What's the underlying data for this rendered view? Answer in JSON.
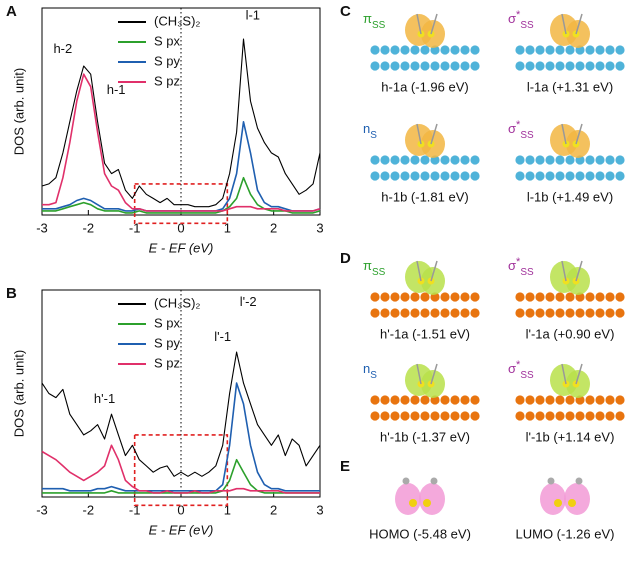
{
  "chart_data": [
    {
      "type": "line",
      "panel": "A",
      "xlabel": "E - EF (eV)",
      "ylabel": "DOS (arb. unit)",
      "xlim": [
        -3,
        3
      ],
      "xticks": [
        -3,
        -2,
        -1,
        0,
        1,
        2,
        3
      ],
      "ylim": [
        0,
        100
      ],
      "vline": 0,
      "highlight": {
        "xrange": [
          -1,
          1
        ],
        "yrange": [
          -4,
          15
        ]
      },
      "legend": "top-center",
      "x": [
        -3,
        -2.85,
        -2.7,
        -2.55,
        -2.4,
        -2.25,
        -2.1,
        -1.95,
        -1.8,
        -1.65,
        -1.5,
        -1.35,
        -1.2,
        -1.05,
        -0.9,
        -0.75,
        -0.6,
        -0.45,
        -0.3,
        -0.15,
        0,
        0.15,
        0.3,
        0.45,
        0.6,
        0.75,
        0.9,
        1.05,
        1.2,
        1.35,
        1.5,
        1.65,
        1.8,
        1.95,
        2.1,
        2.25,
        2.4,
        2.55,
        2.7,
        2.85,
        3
      ],
      "series": [
        {
          "name": "(CH₃S)₂",
          "color": "#000000",
          "values": [
            14,
            15,
            18,
            30,
            45,
            60,
            72,
            68,
            45,
            25,
            20,
            22,
            12,
            8,
            14,
            10,
            8,
            6,
            8,
            5,
            5,
            5,
            4,
            4,
            4,
            5,
            8,
            20,
            40,
            85,
            55,
            42,
            35,
            30,
            28,
            20,
            15,
            10,
            12,
            15,
            30
          ]
        },
        {
          "name": "S px",
          "color": "#2ca02c",
          "values": [
            2,
            2,
            2,
            3,
            4,
            5,
            6,
            5,
            3,
            2,
            2,
            2,
            1,
            1,
            2,
            1,
            1,
            1,
            1,
            1,
            1,
            1,
            1,
            1,
            1,
            1,
            2,
            4,
            8,
            18,
            10,
            5,
            3,
            2,
            2,
            2,
            1,
            1,
            1,
            1,
            2
          ]
        },
        {
          "name": "S py",
          "color": "#1f5fb0",
          "values": [
            3,
            3,
            3,
            4,
            5,
            7,
            8,
            7,
            5,
            3,
            3,
            3,
            2,
            2,
            3,
            2,
            2,
            2,
            2,
            2,
            2,
            2,
            2,
            2,
            2,
            2,
            3,
            8,
            20,
            45,
            30,
            12,
            6,
            4,
            4,
            3,
            2,
            2,
            2,
            2,
            3
          ]
        },
        {
          "name": "S pz",
          "color": "#e0306a",
          "values": [
            5,
            5,
            6,
            18,
            35,
            55,
            68,
            62,
            40,
            20,
            14,
            12,
            6,
            3,
            3,
            2,
            2,
            2,
            2,
            2,
            2,
            2,
            2,
            2,
            2,
            2,
            2,
            3,
            4,
            4,
            4,
            3,
            3,
            3,
            3,
            2,
            2,
            2,
            2,
            2,
            3
          ]
        }
      ],
      "annotations": [
        {
          "text": "h-2",
          "x": -2.55,
          "y": 80
        },
        {
          "text": "h-1",
          "x": -1.4,
          "y": 60
        },
        {
          "text": "l-1",
          "x": 1.55,
          "y": 96
        }
      ]
    },
    {
      "type": "line",
      "panel": "B",
      "xlabel": "E - EF (eV)",
      "ylabel": "DOS (arb. unit)",
      "xlim": [
        -3,
        3
      ],
      "xticks": [
        -3,
        -2,
        -1,
        0,
        1,
        2,
        3
      ],
      "ylim": [
        0,
        100
      ],
      "vline": 0,
      "highlight": {
        "xrange": [
          -1,
          1
        ],
        "yrange": [
          -4,
          30
        ]
      },
      "legend": "top-center",
      "x": [
        -3,
        -2.85,
        -2.7,
        -2.55,
        -2.4,
        -2.25,
        -2.1,
        -1.95,
        -1.8,
        -1.65,
        -1.5,
        -1.35,
        -1.2,
        -1.05,
        -0.9,
        -0.75,
        -0.6,
        -0.45,
        -0.3,
        -0.15,
        0,
        0.15,
        0.3,
        0.45,
        0.6,
        0.75,
        0.9,
        1.05,
        1.2,
        1.35,
        1.5,
        1.65,
        1.8,
        1.95,
        2.1,
        2.25,
        2.4,
        2.55,
        2.7,
        2.85,
        3
      ],
      "series": [
        {
          "name": "(CH₃S)₂",
          "color": "#000000",
          "values": [
            55,
            50,
            48,
            52,
            40,
            35,
            30,
            32,
            35,
            28,
            40,
            30,
            20,
            25,
            18,
            15,
            12,
            14,
            15,
            10,
            12,
            10,
            12,
            10,
            12,
            15,
            25,
            50,
            70,
            55,
            45,
            35,
            30,
            25,
            30,
            20,
            28,
            25,
            15,
            20,
            25
          ]
        },
        {
          "name": "S px",
          "color": "#2ca02c",
          "values": [
            2,
            2,
            2,
            2,
            2,
            2,
            2,
            2,
            2,
            2,
            3,
            2,
            2,
            2,
            2,
            2,
            2,
            2,
            2,
            2,
            2,
            2,
            2,
            2,
            2,
            2,
            3,
            8,
            18,
            12,
            6,
            3,
            2,
            2,
            2,
            2,
            2,
            2,
            2,
            2,
            2
          ]
        },
        {
          "name": "S py",
          "color": "#1f5fb0",
          "values": [
            4,
            4,
            4,
            4,
            3,
            3,
            3,
            3,
            4,
            4,
            5,
            4,
            3,
            3,
            3,
            3,
            3,
            3,
            3,
            3,
            3,
            3,
            3,
            3,
            3,
            3,
            6,
            25,
            55,
            45,
            25,
            12,
            6,
            4,
            4,
            3,
            3,
            3,
            3,
            3,
            3
          ]
        },
        {
          "name": "S pz",
          "color": "#e0306a",
          "values": [
            22,
            20,
            18,
            15,
            12,
            10,
            8,
            10,
            12,
            15,
            25,
            18,
            8,
            5,
            3,
            3,
            2,
            2,
            3,
            2,
            2,
            2,
            3,
            2,
            2,
            3,
            3,
            3,
            4,
            4,
            3,
            3,
            3,
            3,
            3,
            2,
            2,
            2,
            2,
            2,
            2
          ]
        }
      ],
      "annotations": [
        {
          "text": "h'-1",
          "x": -1.65,
          "y": 47
        },
        {
          "text": "l'-1",
          "x": 0.9,
          "y": 77
        },
        {
          "text": "l'-2",
          "x": 1.45,
          "y": 94
        }
      ]
    }
  ],
  "panels": [
    {
      "label": "C",
      "substrate": "#4fb3d9",
      "lobe": "#f2b642",
      "items": [
        {
          "orbital": {
            "symbol": "π",
            "sub": "SS",
            "color": "#2ca02c"
          },
          "caption": "h-1a (-1.96 eV)"
        },
        {
          "orbital": {
            "symbol": "σ",
            "sup": "*",
            "sub": "SS",
            "color": "#a0309a"
          },
          "caption": "l-1a (+1.31 eV)"
        },
        {
          "orbital": {
            "symbol": "n",
            "sub": "S",
            "color": "#1f5fb0"
          },
          "caption": "h-1b (-1.81 eV)"
        },
        {
          "orbital": {
            "symbol": "σ",
            "sup": "*",
            "sub": "SS",
            "color": "#a0309a"
          },
          "caption": "l-1b (+1.49 eV)"
        }
      ]
    },
    {
      "label": "D",
      "substrate": "#e8740f",
      "lobe": "#b8e04a",
      "items": [
        {
          "orbital": {
            "symbol": "π",
            "sub": "SS",
            "color": "#2ca02c"
          },
          "caption": "h'-1a (-1.51 eV)"
        },
        {
          "orbital": {
            "symbol": "σ",
            "sup": "*",
            "sub": "SS",
            "color": "#a0309a"
          },
          "caption": "l'-1a (+0.90 eV)"
        },
        {
          "orbital": {
            "symbol": "n",
            "sub": "S",
            "color": "#1f5fb0"
          },
          "caption": "h'-1b (-1.37 eV)"
        },
        {
          "orbital": {
            "symbol": "σ",
            "sup": "*",
            "sub": "SS",
            "color": "#a0309a"
          },
          "caption": "l'-1b (+1.14 eV)"
        }
      ]
    },
    {
      "label": "E",
      "lobe": "#f29ad6",
      "items": [
        {
          "caption": "HOMO (-5.48 eV)"
        },
        {
          "caption": "LUMO (-1.26 eV)"
        }
      ]
    }
  ]
}
